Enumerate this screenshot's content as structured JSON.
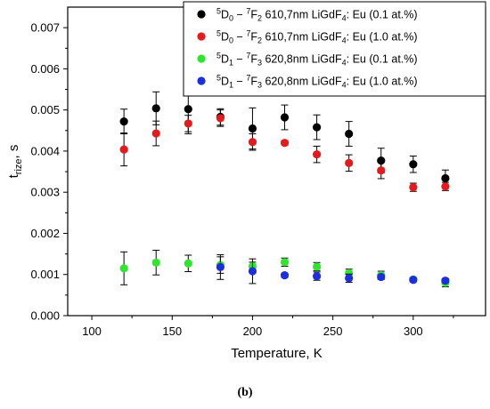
{
  "panel_label": "(b)",
  "chart_data": {
    "type": "scatter",
    "xlabel": "Temperature, K",
    "ylabel_main": "t",
    "ylabel_sub": "rize",
    "ylabel_tail": ", s",
    "xlim": [
      85,
      345
    ],
    "ylim": [
      0,
      0.0075
    ],
    "xticks": [
      100,
      150,
      200,
      250,
      300
    ],
    "xticklabels": [
      "100",
      "150",
      "200",
      "250",
      "300"
    ],
    "yticks": [
      0,
      0.001,
      0.002,
      0.003,
      0.004,
      0.005,
      0.006,
      0.007
    ],
    "yticklabels": [
      "0.000",
      "0.001",
      "0.002",
      "0.003",
      "0.004",
      "0.005",
      "0.006",
      "0.007"
    ],
    "legend_position": "top-right",
    "grid": false,
    "series": [
      {
        "color": "#000000",
        "legend": [
          {
            "t": "5",
            "s": "sup"
          },
          {
            "t": "D",
            "s": ""
          },
          {
            "t": "0",
            "s": "sub"
          },
          {
            "t": " − ",
            "s": ""
          },
          {
            "t": "7",
            "s": "sup"
          },
          {
            "t": "F",
            "s": ""
          },
          {
            "t": "2",
            "s": "sub"
          },
          {
            "t": " 610,7nm LiGdF",
            "s": ""
          },
          {
            "t": "4",
            "s": "sub"
          },
          {
            "t": ": Eu (0.1 at.%)",
            "s": ""
          }
        ],
        "x": [
          120,
          140,
          160,
          180,
          200,
          220,
          240,
          260,
          280,
          300,
          320
        ],
        "y": [
          0.00472,
          0.00504,
          0.00502,
          0.00483,
          0.00455,
          0.00482,
          0.00458,
          0.00442,
          0.00377,
          0.00368,
          0.00334
        ],
        "err": [
          0.0003,
          0.0004,
          0.0006,
          0.0002,
          0.0005,
          0.0003,
          0.0003,
          0.0003,
          0.0003,
          0.0002,
          0.0002
        ]
      },
      {
        "color": "#e41a1c",
        "legend": [
          {
            "t": "5",
            "s": "sup"
          },
          {
            "t": "D",
            "s": ""
          },
          {
            "t": "0",
            "s": "sub"
          },
          {
            "t": " − ",
            "s": ""
          },
          {
            "t": "7",
            "s": "sup"
          },
          {
            "t": "F",
            "s": ""
          },
          {
            "t": "2",
            "s": "sub"
          },
          {
            "t": " 610,7nm LiGdF",
            "s": ""
          },
          {
            "t": "4",
            "s": "sub"
          },
          {
            "t": ": Eu (1.0 at.%)",
            "s": ""
          }
        ],
        "x": [
          120,
          140,
          160,
          180,
          200,
          220,
          240,
          260,
          280,
          300,
          320
        ],
        "y": [
          0.00404,
          0.00443,
          0.00467,
          0.0048,
          0.00422,
          0.0042,
          0.00392,
          0.00371,
          0.00353,
          0.00312,
          0.00314
        ],
        "err": [
          0.0004,
          0.0003,
          0.0002,
          0.0002,
          0.0002,
          5e-05,
          0.0002,
          0.0002,
          0.0002,
          0.0001,
          0.0001
        ]
      },
      {
        "color": "#2ee62e",
        "legend": [
          {
            "t": "5",
            "s": "sup"
          },
          {
            "t": "D",
            "s": ""
          },
          {
            "t": "1",
            "s": "sub"
          },
          {
            "t": " − ",
            "s": ""
          },
          {
            "t": "7",
            "s": "sup"
          },
          {
            "t": "F",
            "s": ""
          },
          {
            "t": "3",
            "s": "sub"
          },
          {
            "t": " 620,8nm LiGdF",
            "s": ""
          },
          {
            "t": "4",
            "s": "sub"
          },
          {
            "t": ": Eu (0.1 at.%)",
            "s": ""
          }
        ],
        "x": [
          120,
          140,
          160,
          180,
          200,
          220,
          240,
          260,
          280,
          300,
          320
        ],
        "y": [
          0.00115,
          0.00129,
          0.00127,
          0.00123,
          0.0012,
          0.0013,
          0.00119,
          0.00103,
          0.00098,
          0.00088,
          0.0008
        ],
        "err": [
          0.0004,
          0.0003,
          0.0002,
          0.0002,
          0.0001,
          0.0001,
          0.0001,
          0.0001,
          0.0001,
          5e-05,
          0.0001
        ]
      },
      {
        "color": "#1c2fe0",
        "legend": [
          {
            "t": "5",
            "s": "sup"
          },
          {
            "t": "D",
            "s": ""
          },
          {
            "t": "1",
            "s": "sub"
          },
          {
            "t": " − ",
            "s": ""
          },
          {
            "t": "7",
            "s": "sup"
          },
          {
            "t": "F",
            "s": ""
          },
          {
            "t": "3",
            "s": "sub"
          },
          {
            "t": " 620,8nm LiGdF",
            "s": ""
          },
          {
            "t": "4",
            "s": "sub"
          },
          {
            "t": ": Eu (1.0 at.%)",
            "s": ""
          }
        ],
        "x": [
          180,
          200,
          220,
          240,
          260,
          280,
          300,
          320
        ],
        "y": [
          0.00118,
          0.00108,
          0.00098,
          0.00096,
          0.00091,
          0.00094,
          0.00087,
          0.00085
        ],
        "err": [
          0.0003,
          0.0003,
          5e-05,
          0.0001,
          0.0001,
          5e-05,
          5e-05,
          5e-05
        ]
      }
    ]
  }
}
